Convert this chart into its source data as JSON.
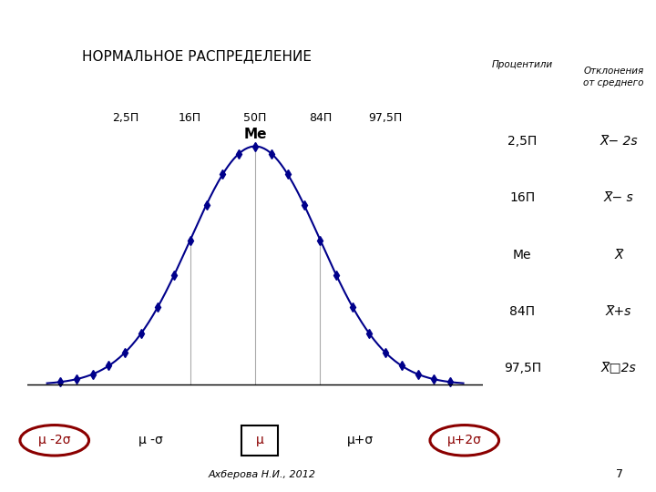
{
  "title": "НОРМАЛЬНОЕ РАСПРЕДЕЛЕНИЕ",
  "percentile_labels": [
    "2,5П",
    "16П",
    "50П",
    "84П",
    "97,5П"
  ],
  "percentile_positions": [
    -2,
    -1,
    0,
    1,
    2
  ],
  "me_label": "Ме",
  "curve_color": "#00008B",
  "marker_color": "#00008B",
  "vline_positions": [
    -1,
    0,
    1
  ],
  "vline_color": "#aaaaaa",
  "right_table_header1": "Процентили",
  "right_table_header2": "Отклонения\nот среднего",
  "right_rows": [
    [
      "2,5П",
      "X̅− 2s"
    ],
    [
      "16П",
      "X̅− s"
    ],
    [
      "Ме",
      "X̅"
    ],
    [
      "84П",
      "X̅+s"
    ],
    [
      "97,5П",
      "X̅□2s"
    ]
  ],
  "bottom_items": [
    {
      "text": "μ -2σ",
      "circled": true,
      "color": "#8B0000",
      "boxed": false
    },
    {
      "text": "μ -σ",
      "circled": false,
      "color": "#000000",
      "boxed": false
    },
    {
      "text": "μ",
      "circled": false,
      "color": "#8B0000",
      "boxed": true
    },
    {
      "text": "μ+σ",
      "circled": false,
      "color": "#000000",
      "boxed": false
    },
    {
      "text": "μ+2σ",
      "circled": true,
      "color": "#8B0000",
      "boxed": false
    }
  ],
  "footer_text": "Ахберова Н.И., 2012",
  "page_num": "7",
  "background_color": "#ffffff",
  "sigma": 1.0,
  "mu": 0.0
}
